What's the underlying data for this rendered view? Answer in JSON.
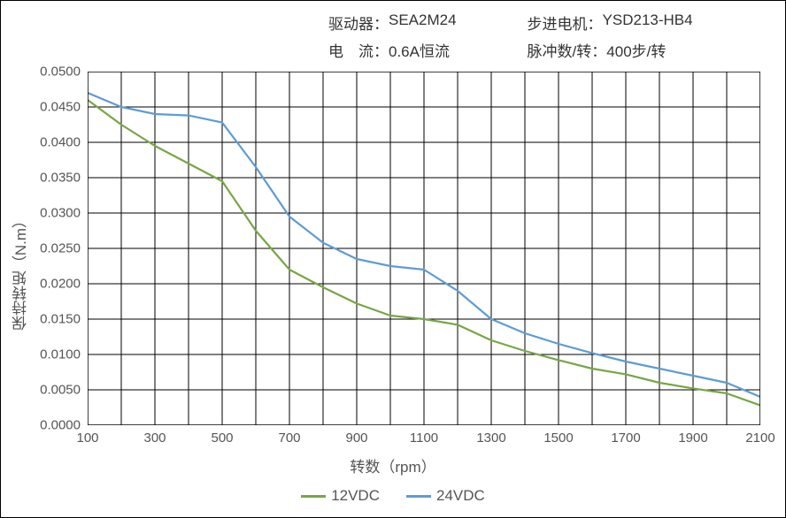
{
  "header": {
    "driver_label": "驱动器：",
    "driver_value": "SEA2M24",
    "current_label": "电　流：",
    "current_value": "0.6A恒流",
    "motor_label": "步进电机：",
    "motor_value": "YSD213-HB4",
    "pulse_label": "脉冲数/转：",
    "pulse_value": "400步/转"
  },
  "chart": {
    "type": "line",
    "x_axis_title": "转数（rpm）",
    "y_axis_title": "保持转矩（N.m）",
    "xlim": [
      100,
      2100
    ],
    "ylim": [
      0.0,
      0.05
    ],
    "x_ticks": [
      100,
      300,
      500,
      700,
      900,
      1100,
      1300,
      1500,
      1700,
      1900,
      2100
    ],
    "x_tick_labels": [
      "100",
      "300",
      "500",
      "700",
      "900",
      "1100",
      "1300",
      "1500",
      "1700",
      "1900",
      "2100"
    ],
    "y_ticks": [
      0.0,
      0.005,
      0.01,
      0.015,
      0.02,
      0.025,
      0.03,
      0.035,
      0.04,
      0.045,
      0.05
    ],
    "y_tick_labels": [
      "0.0000",
      "0.0050",
      "0.0100",
      "0.0150",
      "0.0200",
      "0.0250",
      "0.0300",
      "0.0350",
      "0.0400",
      "0.0450",
      "0.0500"
    ],
    "x_gridlines": [
      100,
      200,
      300,
      400,
      500,
      600,
      700,
      800,
      900,
      1000,
      1100,
      1200,
      1300,
      1400,
      1500,
      1600,
      1700,
      1800,
      1900,
      2000,
      2100
    ],
    "background_color": "#ffffff",
    "grid_color": "#000000",
    "grid_width": 1,
    "border_color": "#000000",
    "border_width": 1.5,
    "line_width": 2.2,
    "series": [
      {
        "name": "12VDC",
        "color": "#77a646",
        "x": [
          100,
          200,
          300,
          400,
          500,
          600,
          700,
          800,
          900,
          1000,
          1100,
          1200,
          1300,
          1400,
          1500,
          1600,
          1700,
          1800,
          1900,
          2000,
          2100
        ],
        "y": [
          0.046,
          0.0425,
          0.0395,
          0.037,
          0.0345,
          0.0275,
          0.022,
          0.0195,
          0.0172,
          0.0155,
          0.015,
          0.0142,
          0.012,
          0.0105,
          0.0092,
          0.008,
          0.0072,
          0.006,
          0.0052,
          0.0045,
          0.0028
        ]
      },
      {
        "name": "24VDC",
        "color": "#5e9cd3",
        "x": [
          100,
          200,
          300,
          400,
          500,
          600,
          700,
          800,
          900,
          1000,
          1100,
          1200,
          1300,
          1400,
          1500,
          1600,
          1700,
          1800,
          1900,
          2000,
          2100
        ],
        "y": [
          0.047,
          0.045,
          0.044,
          0.0438,
          0.0428,
          0.0365,
          0.0295,
          0.0258,
          0.0235,
          0.0225,
          0.022,
          0.019,
          0.015,
          0.013,
          0.0115,
          0.0102,
          0.009,
          0.008,
          0.007,
          0.006,
          0.004
        ]
      }
    ],
    "legend": {
      "items": [
        "12VDC",
        "24VDC"
      ],
      "position": "bottom"
    },
    "label_fontsize": 15,
    "axis_title_fontsize": 17,
    "font_color": "#555555"
  }
}
